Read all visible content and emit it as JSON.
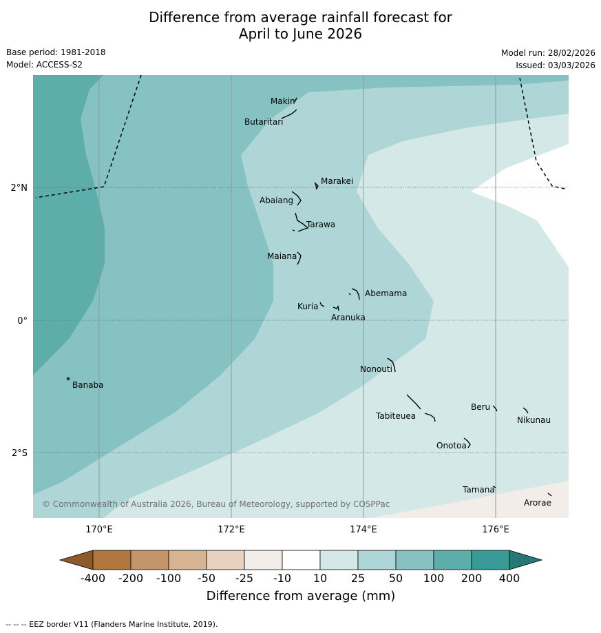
{
  "title": {
    "line1": "Difference from average rainfall forecast for",
    "line2": "April to June 2026"
  },
  "meta": {
    "base_period": "Base period: 1981-2018",
    "model": "Model: ACCESS-S2",
    "model_run": "Model run: 28/02/2026",
    "issued": "Issued: 03/03/2026"
  },
  "map": {
    "lat_labels": [
      "2°N",
      "0°",
      "2°S"
    ],
    "lon_labels": [
      "170°E",
      "172°E",
      "174°E",
      "176°E"
    ],
    "copyright": "© Commonwealth of Australia 2026, Bureau of Meteorology, supported by COSPPac",
    "islands": [
      "Makin",
      "Butaritari",
      "Marakei",
      "Abaiang",
      "Tarawa",
      "Maiana",
      "Abemama",
      "Kuria",
      "Aranuka",
      "Banaba",
      "Nonouti",
      "Tabiteuea",
      "Beru",
      "Nikunau",
      "Onotoa",
      "Tamana",
      "Arorae"
    ]
  },
  "legend": {
    "ticks": [
      "-400",
      "-200",
      "-100",
      "-50",
      "-25",
      "-10",
      "10",
      "25",
      "50",
      "100",
      "200",
      "400"
    ],
    "label": "Difference from average (mm)",
    "colors": {
      "below_min": "#8e5a2c",
      "n400_n200": "#b2773e",
      "n200_n100": "#c4946a",
      "n100_n50": "#d6b391",
      "n50_n25": "#e6d2bf",
      "n25_n10": "#f2ede8",
      "n10_10": "#ffffff",
      "p10_25": "#d5e8e8",
      "p25_50": "#aed6d6",
      "p50_100": "#85c2c1",
      "p100_200": "#5dadab",
      "p200_400": "#3a9a98",
      "above_max": "#267876"
    }
  },
  "footer": "--  --  -- EEZ border V11 (Flanders Marine Institute, 2019)."
}
